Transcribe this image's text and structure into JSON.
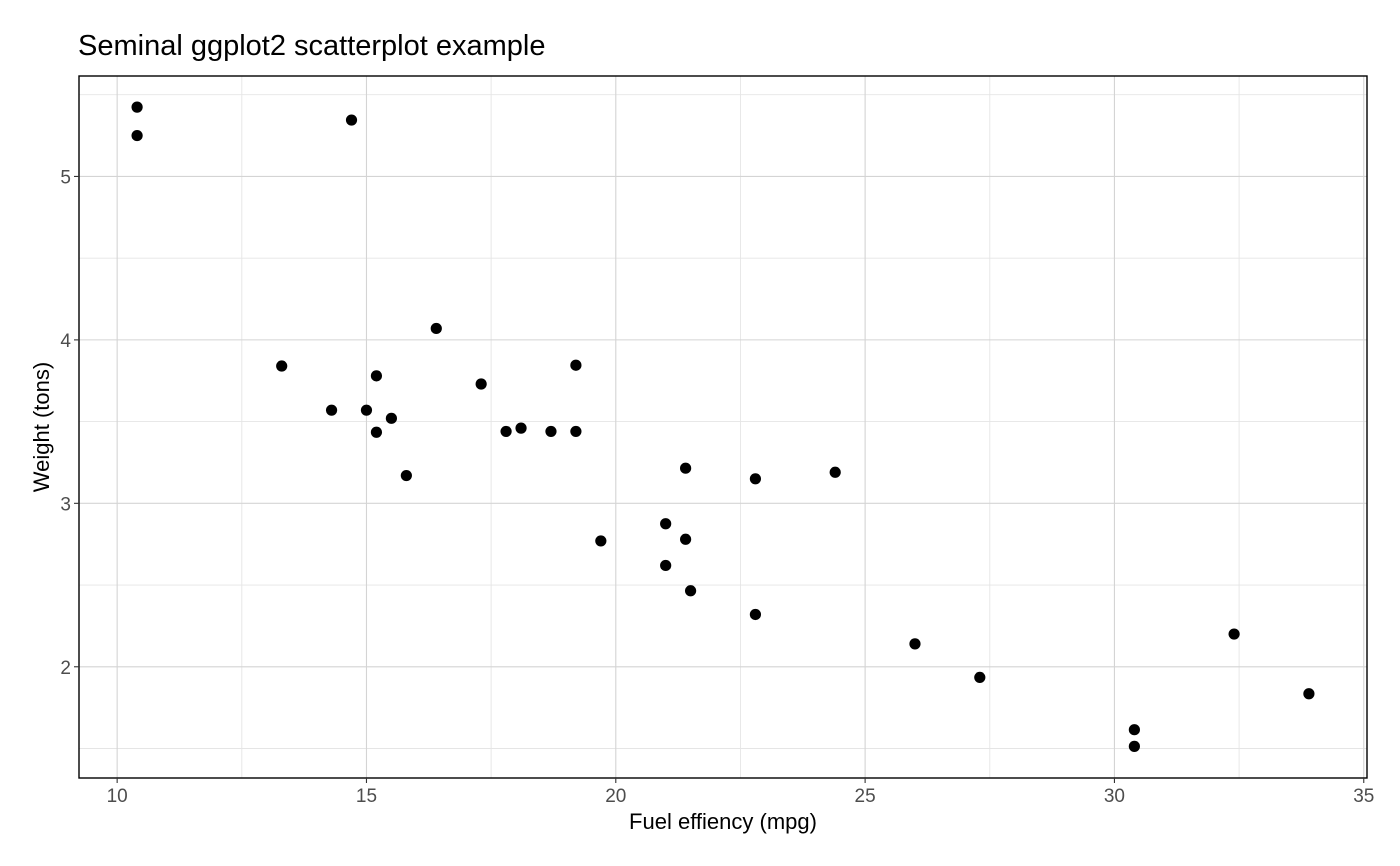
{
  "chart_data": {
    "type": "scatter",
    "title": "Seminal ggplot2 scatterplot example",
    "xlabel": "Fuel effiency (mpg)",
    "ylabel": "Weight (tons)",
    "xlim": [
      9.235,
      35.065
    ],
    "ylim": [
      1.3195,
      5.6145
    ],
    "x_ticks": [
      10,
      15,
      20,
      25,
      30,
      35
    ],
    "x_tick_labels": [
      "10",
      "15",
      "20",
      "25",
      "30",
      "35"
    ],
    "y_ticks": [
      2,
      3,
      4,
      5
    ],
    "y_tick_labels": [
      "2",
      "3",
      "4",
      "5"
    ],
    "x_minor_ticks": [
      12.5,
      17.5,
      22.5,
      27.5,
      32.5
    ],
    "y_minor_ticks": [
      1.5,
      2.5,
      3.5,
      4.5,
      5.5
    ],
    "grid": true,
    "legend": "none",
    "point_color": "#000000",
    "points": [
      {
        "x": 21.0,
        "y": 2.62
      },
      {
        "x": 21.0,
        "y": 2.875
      },
      {
        "x": 22.8,
        "y": 2.32
      },
      {
        "x": 21.4,
        "y": 3.215
      },
      {
        "x": 18.7,
        "y": 3.44
      },
      {
        "x": 18.1,
        "y": 3.46
      },
      {
        "x": 14.3,
        "y": 3.57
      },
      {
        "x": 24.4,
        "y": 3.19
      },
      {
        "x": 22.8,
        "y": 3.15
      },
      {
        "x": 19.2,
        "y": 3.44
      },
      {
        "x": 17.8,
        "y": 3.44
      },
      {
        "x": 16.4,
        "y": 4.07
      },
      {
        "x": 17.3,
        "y": 3.73
      },
      {
        "x": 15.2,
        "y": 3.78
      },
      {
        "x": 10.4,
        "y": 5.25
      },
      {
        "x": 10.4,
        "y": 5.424
      },
      {
        "x": 14.7,
        "y": 5.345
      },
      {
        "x": 32.4,
        "y": 2.2
      },
      {
        "x": 30.4,
        "y": 1.615
      },
      {
        "x": 33.9,
        "y": 1.835
      },
      {
        "x": 21.5,
        "y": 2.465
      },
      {
        "x": 15.5,
        "y": 3.52
      },
      {
        "x": 15.2,
        "y": 3.435
      },
      {
        "x": 13.3,
        "y": 3.84
      },
      {
        "x": 19.2,
        "y": 3.845
      },
      {
        "x": 27.3,
        "y": 1.935
      },
      {
        "x": 26.0,
        "y": 2.14
      },
      {
        "x": 30.4,
        "y": 1.513
      },
      {
        "x": 15.8,
        "y": 3.17
      },
      {
        "x": 19.7,
        "y": 2.77
      },
      {
        "x": 15.0,
        "y": 3.57
      },
      {
        "x": 21.4,
        "y": 2.78
      }
    ]
  }
}
